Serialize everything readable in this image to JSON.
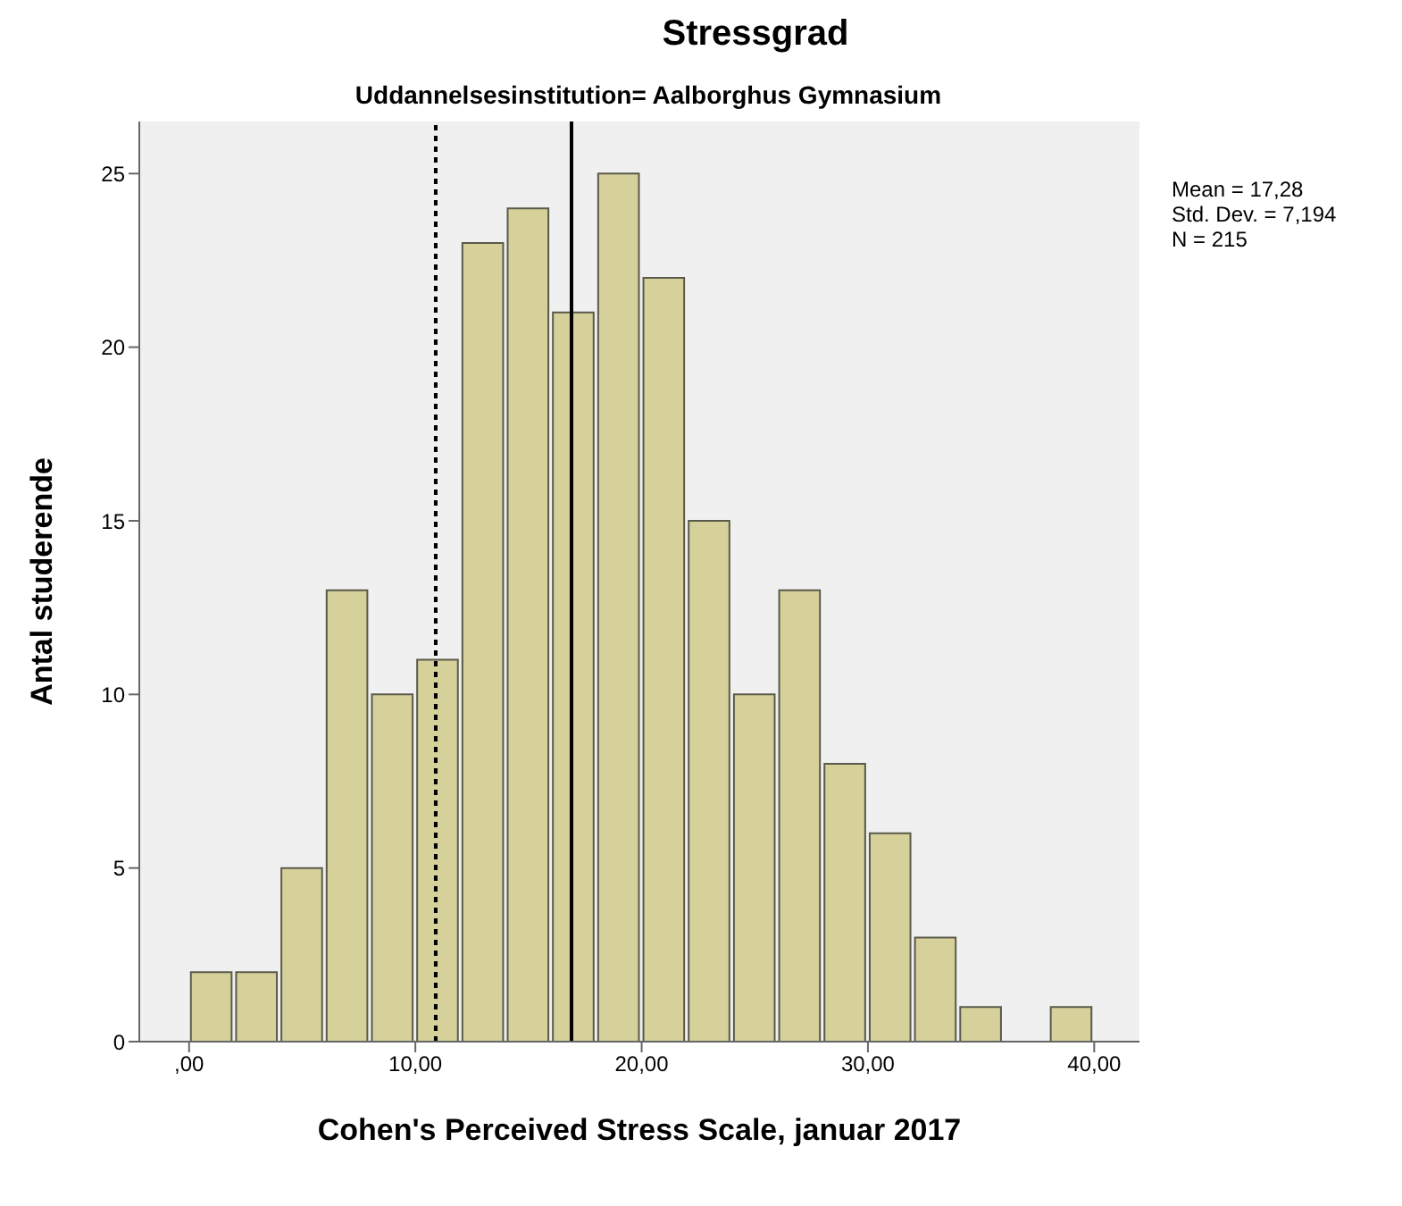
{
  "chart_data": {
    "type": "histogram",
    "title": "Stressgrad",
    "subtitle": "Uddannelsesinstitution= Aalborghus Gymnasium",
    "xlabel": "Cohen's Perceived Stress Scale, januar 2017",
    "ylabel": "Antal studerende",
    "bins": [
      0,
      2,
      4,
      6,
      8,
      10,
      12,
      14,
      16,
      18,
      20,
      22,
      24,
      26,
      28,
      30,
      32,
      34,
      36,
      38,
      40
    ],
    "values": [
      2,
      2,
      5,
      13,
      10,
      11,
      23,
      24,
      21,
      25,
      22,
      15,
      10,
      13,
      8,
      6,
      3,
      1,
      0,
      1
    ],
    "color": "#d6d09b",
    "xlim": [
      -2.2,
      42
    ],
    "xticks": [
      {
        "value": 0,
        "label": ",00"
      },
      {
        "value": 10,
        "label": "10,00"
      },
      {
        "value": 20,
        "label": "20,00"
      },
      {
        "value": 30,
        "label": "30,00"
      },
      {
        "value": 40,
        "label": "40,00"
      }
    ],
    "ylim": [
      0,
      26.5
    ],
    "yticks": [
      0,
      5,
      10,
      15,
      20,
      25
    ],
    "ref_lines": [
      {
        "axis": "x",
        "value": 16.9,
        "line_style": "solid",
        "color": "#000000"
      },
      {
        "axis": "x",
        "value": 10.9,
        "line_style": "dotted",
        "color": "#000000"
      }
    ],
    "annotations": [
      "Mean = 17,28",
      "Std. Dev. = 7,194",
      "N = 215"
    ]
  }
}
